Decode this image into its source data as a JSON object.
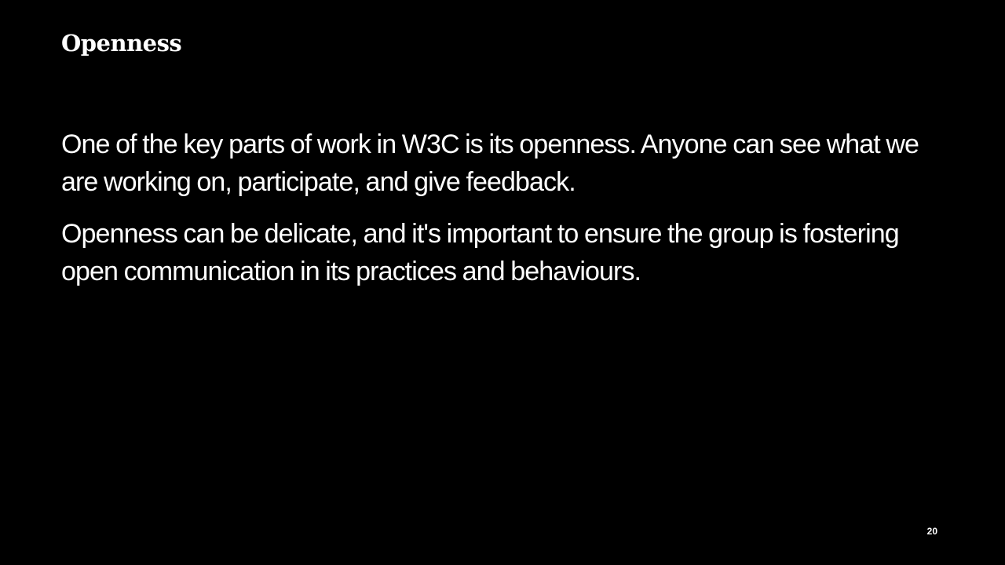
{
  "slide": {
    "title": "Openness",
    "paragraphs": [
      "One of the key parts of work in W3C is its openness. Anyone can see what we are working on, participate, and give feedback.",
      "Openness can be delicate, and it's important to ensure the group is fostering open communication in its practices and behaviours."
    ],
    "page_number": "20"
  },
  "colors": {
    "background": "#000000",
    "text": "#ffffff"
  }
}
